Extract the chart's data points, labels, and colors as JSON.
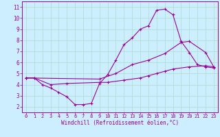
{
  "xlabel": "Windchill (Refroidissement éolien,°C)",
  "bg_color": "#cceeff",
  "line_color": "#990099",
  "grid_color": "#aaddcc",
  "xlim": [
    -0.5,
    23.5
  ],
  "ylim": [
    1.5,
    11.5
  ],
  "xticks": [
    0,
    1,
    2,
    3,
    4,
    5,
    6,
    7,
    8,
    9,
    10,
    11,
    12,
    13,
    14,
    15,
    16,
    17,
    18,
    19,
    20,
    21,
    22,
    23
  ],
  "yticks": [
    2,
    3,
    4,
    5,
    6,
    7,
    8,
    9,
    10,
    11
  ],
  "line1_x": [
    0,
    1,
    2,
    3,
    4,
    5,
    6,
    7,
    8,
    9,
    10,
    11,
    12,
    13,
    14,
    15,
    16,
    17,
    18,
    19,
    20,
    21,
    22,
    23
  ],
  "line1_y": [
    4.6,
    4.6,
    4.0,
    3.7,
    3.3,
    2.9,
    2.2,
    2.2,
    2.3,
    4.1,
    4.9,
    6.2,
    7.6,
    8.2,
    9.0,
    9.3,
    10.7,
    10.8,
    10.3,
    7.9,
    6.9,
    5.8,
    5.6,
    5.5
  ],
  "line2_x": [
    0,
    1,
    3,
    5,
    9,
    10,
    12,
    14,
    15,
    16,
    17,
    18,
    20,
    22,
    23
  ],
  "line2_y": [
    4.6,
    4.6,
    4.0,
    4.1,
    4.2,
    4.2,
    4.4,
    4.6,
    4.8,
    5.0,
    5.2,
    5.4,
    5.6,
    5.7,
    5.6
  ],
  "line3_x": [
    0,
    9,
    11,
    13,
    15,
    17,
    19,
    20,
    22,
    23
  ],
  "line3_y": [
    4.6,
    4.5,
    5.0,
    5.8,
    6.2,
    6.8,
    7.8,
    7.9,
    6.9,
    5.6
  ]
}
